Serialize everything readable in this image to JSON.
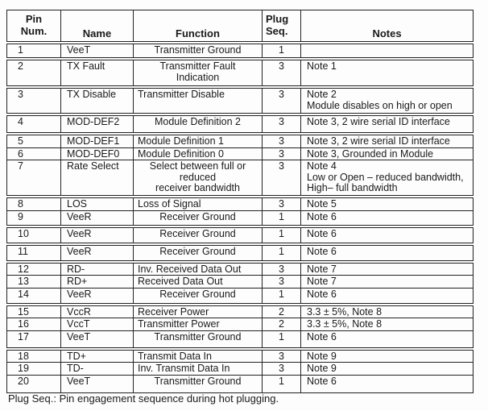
{
  "table": {
    "header": {
      "pin_num": "Pin\nNum.",
      "name": "Name",
      "function": "Function",
      "plug_seq": "Plug\nSeq.",
      "notes": "Notes"
    },
    "rows": [
      {
        "pin": "1",
        "name": "VeeT",
        "function": "Transmitter Ground",
        "plug": "1",
        "notes": ""
      },
      {
        "pin": "2",
        "name": "TX Fault",
        "function": "Transmitter Fault\nIndication",
        "plug": "3",
        "notes": "Note 1"
      },
      {
        "pin": "3",
        "name": "TX Disable",
        "function": "Transmitter Disable",
        "plug": "3",
        "notes": "Note 2\nModule disables on high or open"
      },
      {
        "pin": "4",
        "name": "MOD-DEF2",
        "function": "Module Definition 2",
        "plug": "3",
        "notes": "Note 3, 2 wire serial ID interface"
      },
      {
        "pin": "5",
        "name": "MOD-DEF1",
        "function": "Module Definition 1",
        "plug": "3",
        "notes": "Note 3, 2 wire serial ID interface"
      },
      {
        "pin": "6",
        "name": "MOD-DEF0",
        "function": "Module Definition 0",
        "plug": "3",
        "notes": "Note 3, Grounded in Module"
      },
      {
        "pin": "7",
        "name": "Rate Select",
        "function": "Select between full or\nreduced\nreceiver bandwidth",
        "plug": "3",
        "notes": "Note 4\nLow or Open – reduced bandwidth,\nHigh– full bandwidth"
      },
      {
        "pin": "8",
        "name": "LOS",
        "function": "Loss of Signal",
        "plug": "3",
        "notes": "Note 5"
      },
      {
        "pin": "9",
        "name": "VeeR",
        "function": "Receiver Ground",
        "plug": "1",
        "notes": "Note 6"
      },
      {
        "pin": "10",
        "name": "VeeR",
        "function": "Receiver Ground",
        "plug": "1",
        "notes": "Note 6"
      },
      {
        "pin": "11",
        "name": "VeeR",
        "function": "Receiver Ground",
        "plug": "1",
        "notes": "Note 6"
      },
      {
        "pin": "12",
        "name": "RD-",
        "function": "Inv. Received Data Out",
        "plug": "3",
        "notes": "Note 7"
      },
      {
        "pin": "13",
        "name": "RD+",
        "function": "Received Data Out",
        "plug": "3",
        "notes": "Note 7"
      },
      {
        "pin": "14",
        "name": "VeeR",
        "function": "Receiver Ground",
        "plug": "1",
        "notes": "Note 6"
      },
      {
        "pin": "15",
        "name": "VccR",
        "function": "Receiver Power",
        "plug": "2",
        "notes": "3.3 ± 5%, Note 8"
      },
      {
        "pin": "16",
        "name": "VccT",
        "function": "Transmitter Power",
        "plug": "2",
        "notes": "3.3 ± 5%, Note 8"
      },
      {
        "pin": "17",
        "name": "VeeT",
        "function": "Transmitter Ground",
        "plug": "1",
        "notes": "Note 6"
      },
      {
        "pin": "18",
        "name": "TD+",
        "function": "Transmit Data In",
        "plug": "3",
        "notes": "Note 9"
      },
      {
        "pin": "19",
        "name": "TD-",
        "function": "Inv. Transmit Data In",
        "plug": "3",
        "notes": "Note 9"
      },
      {
        "pin": "20",
        "name": "VeeT",
        "function": "Transmitter Ground",
        "plug": "1",
        "notes": "Note 6"
      }
    ]
  },
  "caption": "Plug Seq.: Pin engagement sequence during hot plugging."
}
